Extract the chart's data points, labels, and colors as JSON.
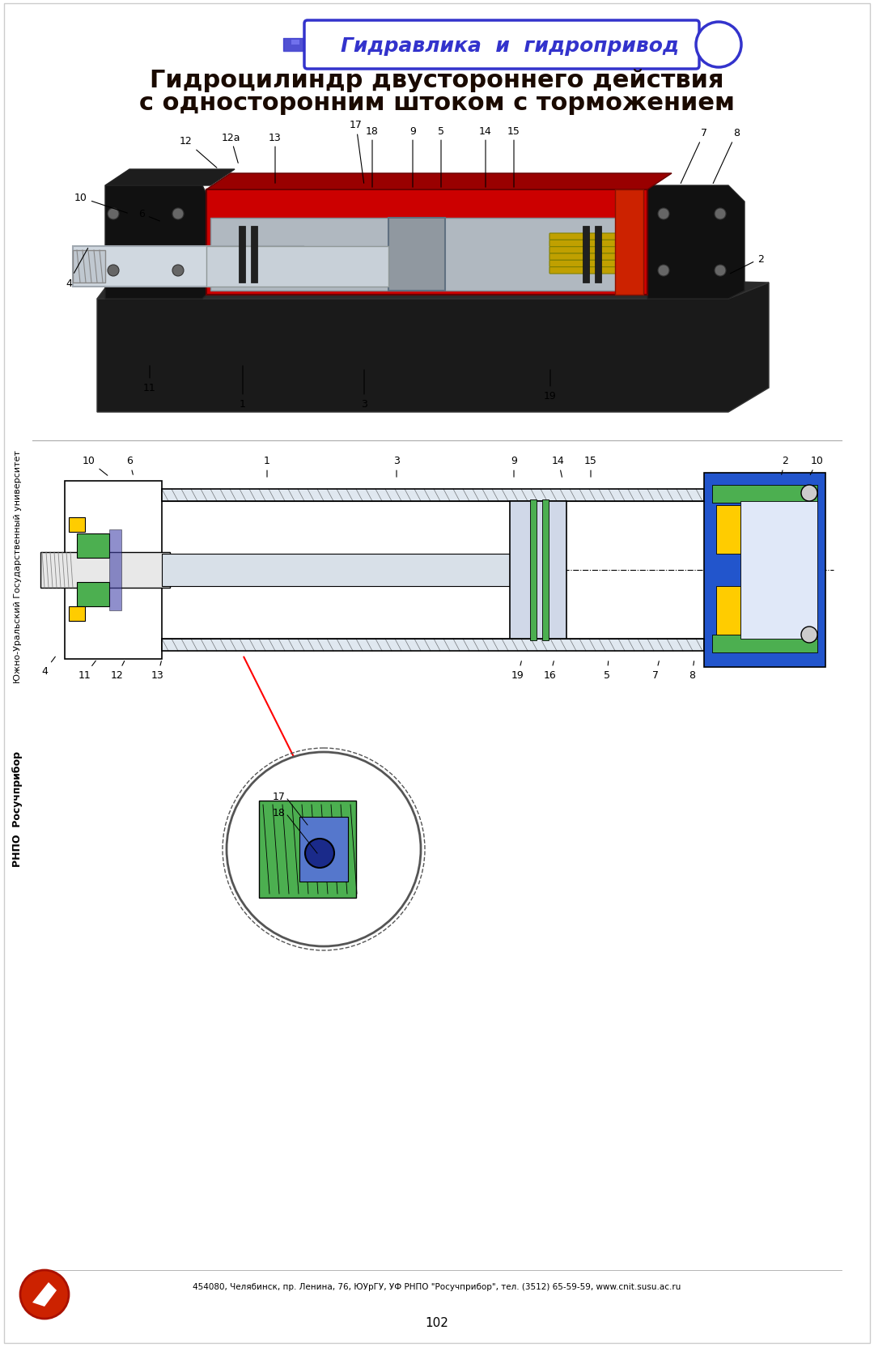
{
  "title_line1": "Гидроцилиндр двустороннего действия",
  "title_line2": "с односторонним штоком с торможением",
  "header_text": "Гидравлика  и  гидропривод",
  "side_text_top": "Южно-Уральский Государственный университет",
  "side_text_bottom": "РНПО  Росучприбор",
  "footer_text": "454080, Челябинск, пр. Ленина, 76, ЮУрГУ, УФ РНПО \"Росучприбор\", тел. (3512) 65-59-59, www.cnit.susu.ac.ru",
  "page_number": "102",
  "bg_color": "#ffffff",
  "header_color": "#3333cc",
  "title_color": "#1a0a00",
  "body_color": "#000000"
}
